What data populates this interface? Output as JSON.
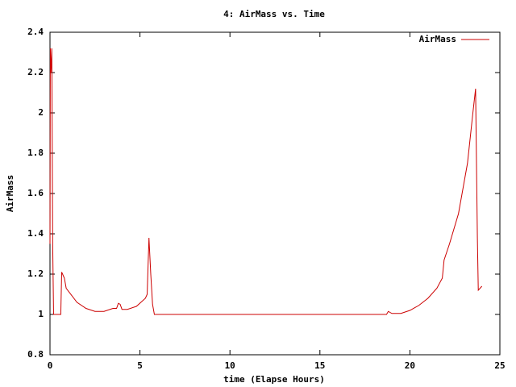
{
  "chart_data": {
    "type": "line",
    "title": "4: AirMass vs. Time",
    "xlabel": "time (Elapse Hours)",
    "ylabel": "AirMass",
    "legend": "top-right",
    "xlim": [
      0,
      25
    ],
    "xticks": [
      0,
      5,
      10,
      15,
      20,
      25
    ],
    "ylim": [
      0.8,
      2.4
    ],
    "yticks": [
      0.8,
      1,
      1.2,
      1.4,
      1.6,
      1.8,
      2,
      2.2,
      2.4
    ],
    "x": [
      0,
      0.02,
      0.05,
      0.1,
      0.15,
      0.2,
      0.6,
      0.65,
      0.8,
      0.9,
      1.5,
      2,
      2.5,
      3,
      3.5,
      3.7,
      3.8,
      3.9,
      4.0,
      4.3,
      4.8,
      5.3,
      5.4,
      5.5,
      5.6,
      5.7,
      5.8,
      18.2,
      18.7,
      18.8,
      19,
      19.5,
      20,
      20.5,
      21,
      21.5,
      21.8,
      21.9,
      22.2,
      22.7,
      23.2,
      23.5,
      23.65,
      23.75,
      23.8,
      24
    ],
    "series": [
      {
        "name": "AirMass",
        "color": "#cc0000",
        "values": [
          1.35,
          2.32,
          2.2,
          2.32,
          1.35,
          1.0,
          1.0,
          1.21,
          1.18,
          1.13,
          1.06,
          1.03,
          1.015,
          1.015,
          1.03,
          1.03,
          1.055,
          1.05,
          1.025,
          1.025,
          1.04,
          1.08,
          1.1,
          1.38,
          1.2,
          1.05,
          1.0,
          1.0,
          1.0,
          1.015,
          1.005,
          1.005,
          1.02,
          1.045,
          1.08,
          1.13,
          1.18,
          1.27,
          1.35,
          1.5,
          1.75,
          2.0,
          2.12,
          1.38,
          1.12,
          1.14
        ]
      }
    ]
  }
}
